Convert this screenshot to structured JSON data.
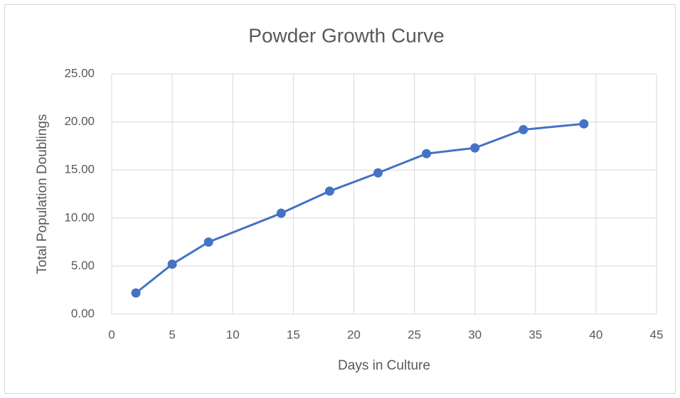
{
  "chart_data": {
    "type": "line",
    "title": "Powder Growth Curve",
    "x_label": "Days in Culture",
    "y_label": "Total Population Doublings",
    "x": [
      2,
      5,
      8,
      14,
      18,
      22,
      26,
      30,
      34,
      39
    ],
    "values": [
      2.2,
      5.2,
      7.5,
      10.5,
      12.8,
      14.7,
      16.7,
      17.3,
      19.2,
      19.8
    ],
    "color": "#4472c4",
    "xlim": [
      0,
      45
    ],
    "xticks": [
      0,
      5,
      10,
      15,
      20,
      25,
      30,
      35,
      40,
      45
    ],
    "ylim": [
      0,
      25
    ],
    "yticks": [
      {
        "value": 0,
        "label": "0.00"
      },
      {
        "value": 5,
        "label": "5.00"
      },
      {
        "value": 10,
        "label": "10.00"
      },
      {
        "value": 15,
        "label": "15.00"
      },
      {
        "value": 20,
        "label": "20.00"
      },
      {
        "value": 25,
        "label": "25.00"
      }
    ],
    "grid": true
  }
}
